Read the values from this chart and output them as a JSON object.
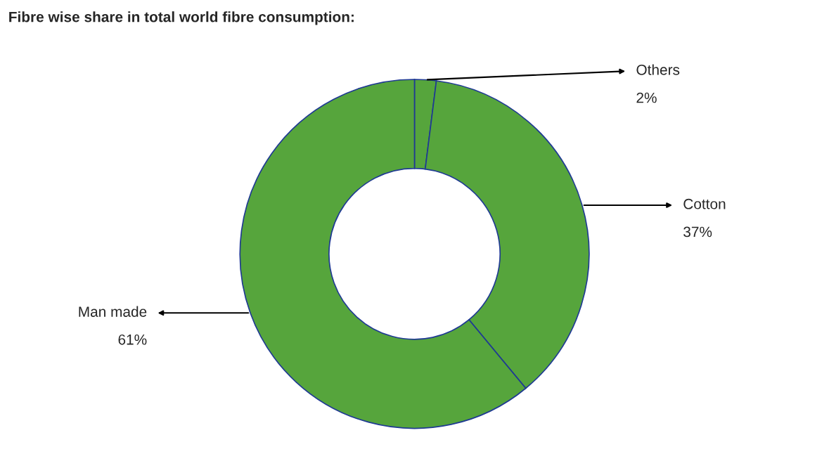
{
  "chart_data": {
    "type": "donut",
    "title": "Fibre wise share in total world fibre consumption:",
    "categories": [
      "Others",
      "Cotton",
      "Man made"
    ],
    "values": [
      2,
      37,
      61
    ],
    "value_labels": [
      "2%",
      "37%",
      "61%"
    ],
    "colors": [
      "#56a53c",
      "#56a53c",
      "#56a53c"
    ]
  }
}
